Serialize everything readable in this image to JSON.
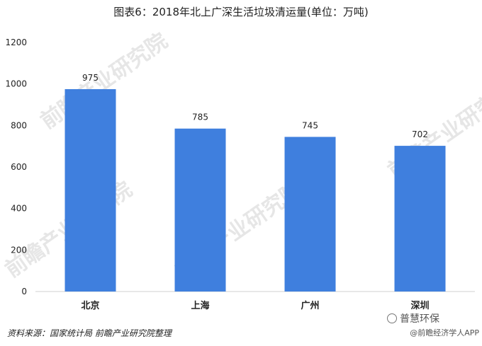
{
  "title": "图表6：2018年北上广深生活垃圾清运量(单位：万吨)",
  "source": "资料来源：国家统计局 前瞻产业研究院整理",
  "watermark": "前瞻产业研究院",
  "brand": "普慧环保",
  "app_label": "@前瞻经济学人APP",
  "colors": {
    "bar": "#3f7fde",
    "text": "#222222"
  },
  "chart_data": {
    "type": "bar",
    "title": "图表6：2018年北上广深生活垃圾清运量(单位：万吨)",
    "categories": [
      "北京",
      "上海",
      "广州",
      "深圳"
    ],
    "values": [
      975,
      785,
      745,
      702
    ],
    "data_labels": [
      "975",
      "785",
      "745",
      "702"
    ],
    "ylim": [
      0,
      1200
    ],
    "yticks": [
      0,
      200,
      400,
      600,
      800,
      1000,
      1200
    ],
    "xlabel": "",
    "ylabel": "",
    "grid": false,
    "legend": "none"
  }
}
